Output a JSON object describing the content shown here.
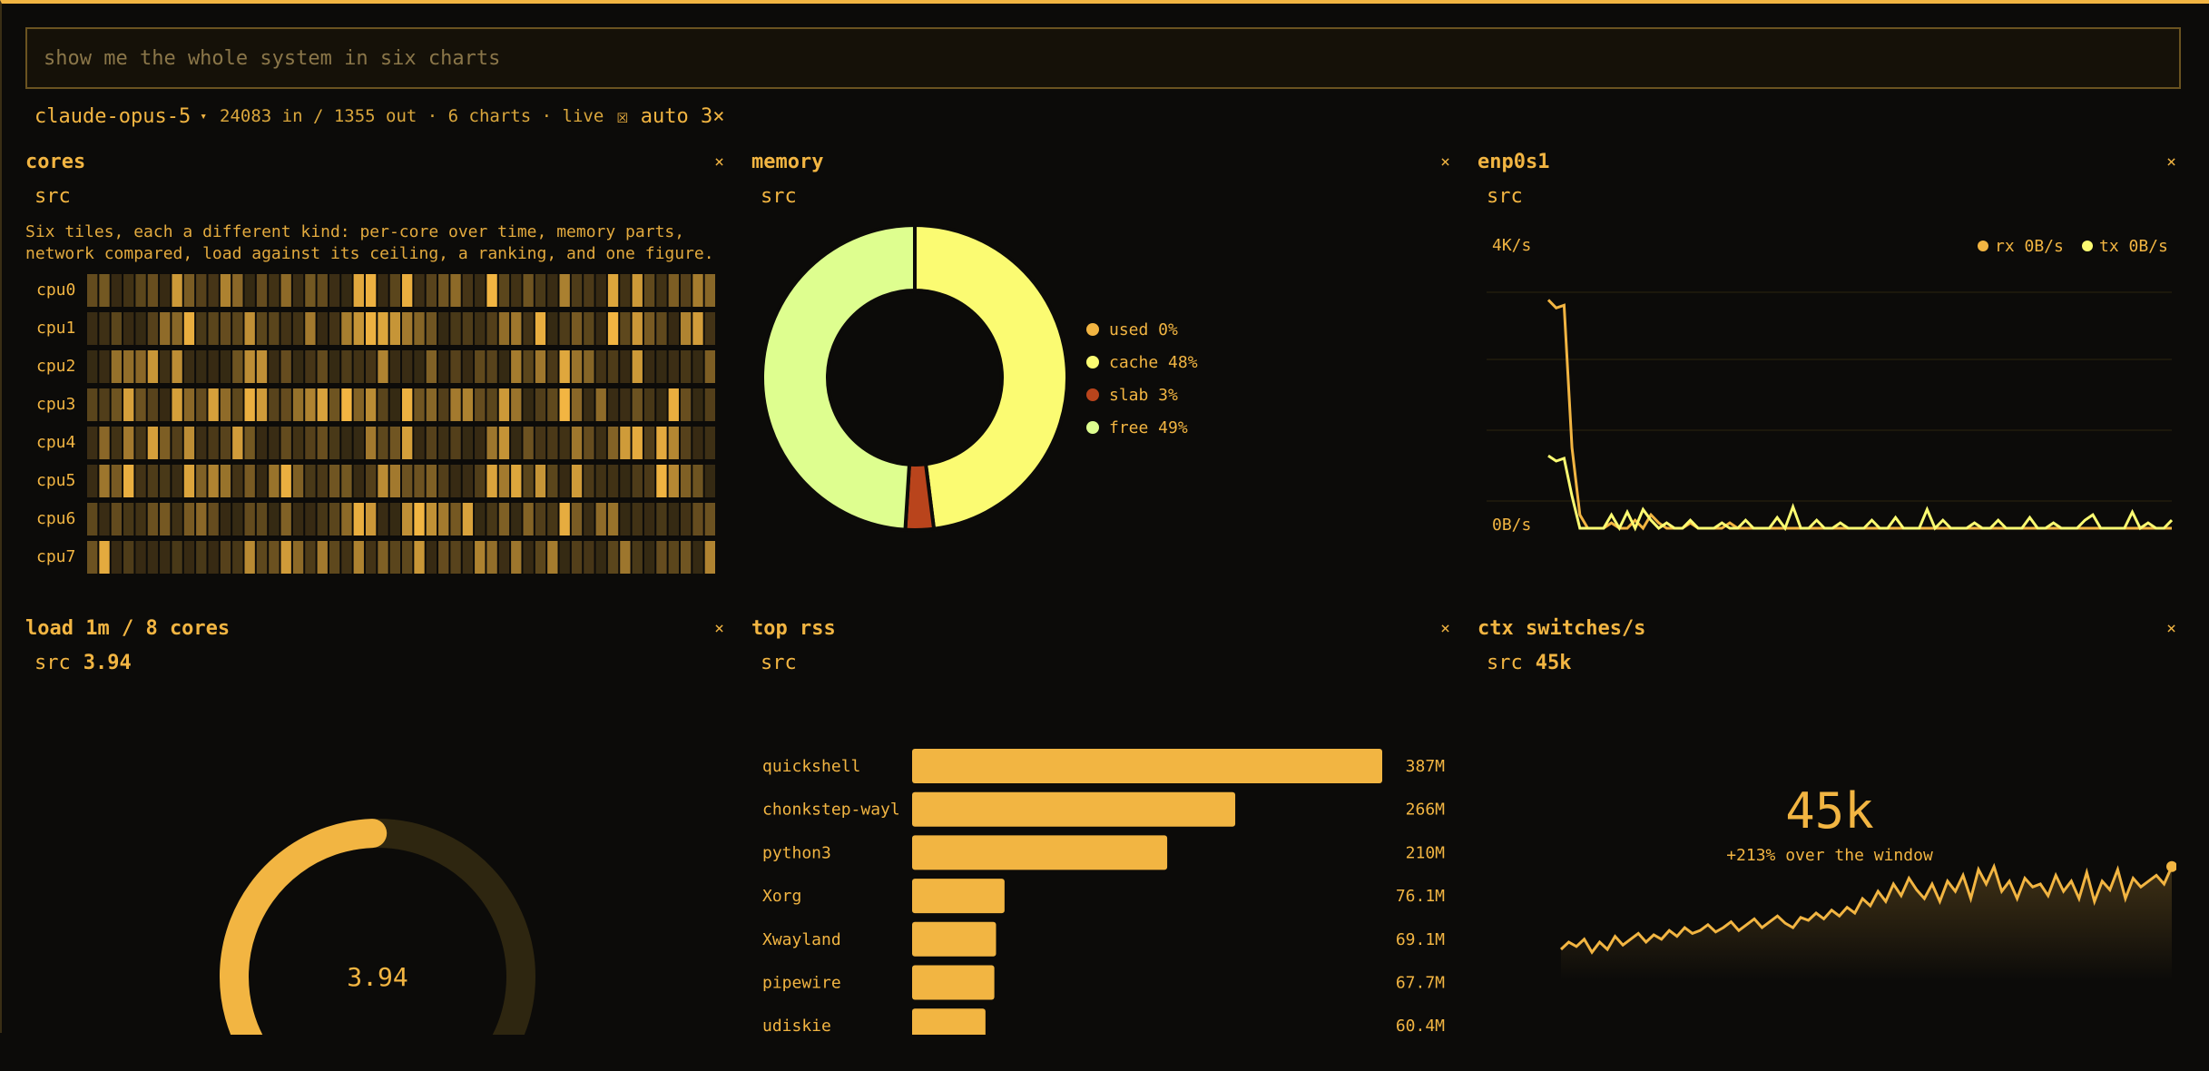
{
  "prompt": {
    "placeholder": "show me the whole system in six charts",
    "value": ""
  },
  "status": {
    "model": "claude-opus-5",
    "model_caret": "▾",
    "stats": "24083 in / 1355 out · 6 charts · live",
    "auto": "☒ auto 3×"
  },
  "colors": {
    "accent": "#f2b542",
    "cache": "#fbfb72",
    "slab": "#b9441c",
    "free": "#defe8f",
    "background": "#0c0b09"
  },
  "tiles": {
    "cores": {
      "title": "cores",
      "close": "×",
      "src": "src",
      "note_line1": "Six tiles, each a different kind: per-core over time, memory parts,",
      "note_line2": "network compared, load against its ceiling, a ranking, and one figure.",
      "rows": [
        "cpu0",
        "cpu1",
        "cpu2",
        "cpu3",
        "cpu4",
        "cpu5",
        "cpu6",
        "cpu7"
      ]
    },
    "memory": {
      "title": "memory",
      "close": "×",
      "src": "src",
      "legend": [
        {
          "name": "used",
          "pct": "0%",
          "value": 0,
          "color": "#f2b542"
        },
        {
          "name": "cache",
          "pct": "48%",
          "value": 48,
          "color": "#fbfb72"
        },
        {
          "name": "slab",
          "pct": "3%",
          "value": 3,
          "color": "#b9441c"
        },
        {
          "name": "free",
          "pct": "49%",
          "value": 49,
          "color": "#defe8f"
        }
      ]
    },
    "net": {
      "title": "enp0s1",
      "close": "×",
      "src": "src",
      "y_top": "4K/s",
      "y_bottom": "0B/s",
      "legend_rx": "rx 0B/s",
      "legend_tx": "tx 0B/s",
      "rx_color": "#f2b542",
      "tx_color": "#fbfb72",
      "rx": [
        0.85,
        0.82,
        0.83,
        0.3,
        0.05,
        0.0,
        0.0,
        0.0,
        0.02,
        0.0,
        0.0,
        0.03,
        0.0,
        0.05,
        0.02,
        0.0,
        0.0,
        0.0,
        0.02,
        0.0,
        0.0,
        0.0,
        0.0,
        0.02,
        0.0,
        0.0,
        0.0,
        0.0,
        0.0,
        0.0,
        0.0,
        0.0,
        0.0,
        0.0,
        0.0,
        0.0,
        0.0,
        0.0,
        0.0,
        0.0,
        0.0,
        0.0,
        0.0,
        0.0,
        0.0,
        0.0,
        0.0,
        0.0,
        0.0,
        0.0,
        0.0,
        0.0,
        0.0,
        0.0,
        0.0,
        0.0,
        0.0,
        0.0,
        0.0,
        0.0,
        0.0,
        0.0,
        0.0,
        0.0,
        0.0,
        0.0,
        0.0,
        0.0,
        0.0,
        0.0,
        0.0,
        0.0,
        0.0,
        0.0,
        0.0,
        0.0,
        0.0,
        0.0,
        0.0,
        0.0
      ],
      "tx": [
        0.27,
        0.25,
        0.26,
        0.12,
        0.0,
        0.0,
        0.0,
        0.0,
        0.05,
        0.0,
        0.06,
        0.0,
        0.07,
        0.03,
        0.0,
        0.02,
        0.0,
        0.0,
        0.03,
        0.0,
        0.0,
        0.0,
        0.02,
        0.0,
        0.0,
        0.03,
        0.0,
        0.0,
        0.0,
        0.04,
        0.0,
        0.08,
        0.0,
        0.0,
        0.03,
        0.0,
        0.0,
        0.02,
        0.0,
        0.0,
        0.0,
        0.03,
        0.0,
        0.0,
        0.04,
        0.0,
        0.0,
        0.0,
        0.07,
        0.0,
        0.03,
        0.0,
        0.0,
        0.0,
        0.02,
        0.0,
        0.0,
        0.03,
        0.0,
        0.0,
        0.0,
        0.04,
        0.0,
        0.0,
        0.02,
        0.0,
        0.0,
        0.0,
        0.03,
        0.05,
        0.0,
        0.0,
        0.0,
        0.0,
        0.06,
        0.0,
        0.02,
        0.0,
        0.0,
        0.03
      ]
    },
    "load": {
      "title": "load 1m / 8 cores",
      "close": "×",
      "src": "src",
      "src_value": "3.94",
      "center": "3.94",
      "min": "0",
      "max": "8",
      "value": 3.94,
      "max_value": 8
    },
    "toprss": {
      "title": "top rss",
      "close": "×",
      "src": "src",
      "bars": [
        {
          "name": "quickshell",
          "label": "387M",
          "value": 387
        },
        {
          "name": "chonkstep-wayl",
          "label": "266M",
          "value": 266
        },
        {
          "name": "python3",
          "label": "210M",
          "value": 210
        },
        {
          "name": "Xorg",
          "label": "76.1M",
          "value": 76.1
        },
        {
          "name": "Xwayland",
          "label": "69.1M",
          "value": 69.1
        },
        {
          "name": "pipewire",
          "label": "67.7M",
          "value": 67.7
        },
        {
          "name": "udiskie",
          "label": "60.4M",
          "value": 60.4
        }
      ]
    },
    "ctx": {
      "title": "ctx switches/s",
      "close": "×",
      "src": "src",
      "src_value": "45k",
      "big": "45k",
      "delta": "+213% over the window",
      "series": [
        0.15,
        0.2,
        0.17,
        0.22,
        0.13,
        0.2,
        0.15,
        0.24,
        0.18,
        0.22,
        0.26,
        0.2,
        0.25,
        0.22,
        0.28,
        0.24,
        0.3,
        0.26,
        0.28,
        0.32,
        0.27,
        0.3,
        0.34,
        0.28,
        0.32,
        0.36,
        0.3,
        0.34,
        0.38,
        0.33,
        0.3,
        0.37,
        0.35,
        0.4,
        0.36,
        0.42,
        0.38,
        0.44,
        0.4,
        0.5,
        0.45,
        0.55,
        0.48,
        0.6,
        0.52,
        0.64,
        0.56,
        0.5,
        0.6,
        0.48,
        0.62,
        0.55,
        0.66,
        0.5,
        0.7,
        0.6,
        0.72,
        0.55,
        0.62,
        0.5,
        0.64,
        0.58,
        0.6,
        0.52,
        0.66,
        0.55,
        0.62,
        0.5,
        0.68,
        0.48,
        0.62,
        0.56,
        0.7,
        0.5,
        0.64,
        0.58,
        0.62,
        0.66,
        0.6,
        0.72
      ]
    }
  }
}
